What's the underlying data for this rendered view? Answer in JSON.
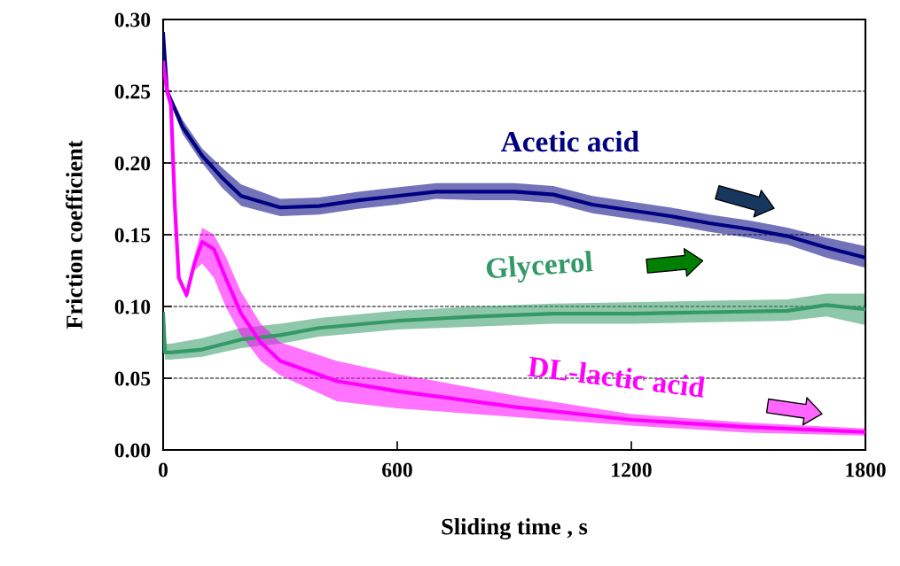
{
  "chart_data": {
    "type": "line",
    "xlabel": "Sliding time , s",
    "ylabel": "Friction coefficient",
    "xlim": [
      0,
      1800
    ],
    "ylim": [
      0,
      0.3
    ],
    "xticks": [
      0,
      600,
      1200,
      1800
    ],
    "yticks": [
      {
        "value": 0,
        "label": "0.00"
      },
      {
        "value": 0.05,
        "label": "0.05"
      },
      {
        "value": 0.1,
        "label": "0.10"
      },
      {
        "value": 0.15,
        "label": "0.15"
      },
      {
        "value": 0.2,
        "label": "0.20"
      },
      {
        "value": 0.25,
        "label": "0.25"
      },
      {
        "value": 0.3,
        "label": "0.30"
      }
    ],
    "grid": "y",
    "legend": false,
    "marker": "none",
    "line_style": "solid",
    "series": [
      {
        "name": "Acetic acid",
        "color": "#000080",
        "x": [
          0,
          10,
          50,
          100,
          150,
          200,
          300,
          400,
          500,
          600,
          700,
          800,
          900,
          1000,
          1100,
          1200,
          1300,
          1400,
          1500,
          1600,
          1700,
          1800
        ],
        "values": [
          0.29,
          0.25,
          0.225,
          0.205,
          0.19,
          0.177,
          0.169,
          0.17,
          0.174,
          0.177,
          0.18,
          0.18,
          0.18,
          0.178,
          0.171,
          0.167,
          0.163,
          0.158,
          0.154,
          0.149,
          0.141,
          0.134
        ],
        "lower": [
          0.29,
          0.248,
          0.22,
          0.2,
          0.183,
          0.17,
          0.163,
          0.164,
          0.168,
          0.171,
          0.175,
          0.174,
          0.174,
          0.172,
          0.165,
          0.161,
          0.157,
          0.152,
          0.148,
          0.143,
          0.134,
          0.127
        ],
        "upper": [
          0.29,
          0.252,
          0.23,
          0.21,
          0.197,
          0.185,
          0.175,
          0.176,
          0.18,
          0.183,
          0.186,
          0.186,
          0.186,
          0.184,
          0.177,
          0.173,
          0.169,
          0.164,
          0.16,
          0.155,
          0.148,
          0.142
        ]
      },
      {
        "name": "Glycerol",
        "color": "#339966",
        "x": [
          0,
          5,
          20,
          100,
          200,
          300,
          400,
          600,
          800,
          1000,
          1200,
          1400,
          1600,
          1700,
          1800
        ],
        "values": [
          0.095,
          0.068,
          0.068,
          0.07,
          0.077,
          0.08,
          0.085,
          0.09,
          0.093,
          0.095,
          0.095,
          0.096,
          0.097,
          0.101,
          0.098
        ],
        "lower": [
          0.09,
          0.063,
          0.063,
          0.065,
          0.071,
          0.074,
          0.079,
          0.084,
          0.086,
          0.088,
          0.088,
          0.089,
          0.09,
          0.093,
          0.087
        ],
        "upper": [
          0.1,
          0.074,
          0.074,
          0.078,
          0.085,
          0.088,
          0.092,
          0.097,
          0.1,
          0.102,
          0.103,
          0.104,
          0.105,
          0.109,
          0.109
        ]
      },
      {
        "name": "DL-lactic acid",
        "color": "#ff00ff",
        "x": [
          0,
          10,
          20,
          30,
          40,
          60,
          80,
          100,
          130,
          160,
          200,
          250,
          300,
          445,
          600,
          900,
          1200,
          1500,
          1800
        ],
        "values": [
          0.27,
          0.25,
          0.24,
          0.17,
          0.12,
          0.108,
          0.13,
          0.145,
          0.14,
          0.12,
          0.095,
          0.075,
          0.062,
          0.048,
          0.041,
          0.03,
          0.021,
          0.016,
          0.0125
        ],
        "lower": [
          0.27,
          0.25,
          0.24,
          0.17,
          0.12,
          0.105,
          0.125,
          0.13,
          0.12,
          0.1,
          0.08,
          0.062,
          0.052,
          0.034,
          0.029,
          0.023,
          0.017,
          0.012,
          0.01
        ],
        "upper": [
          0.27,
          0.25,
          0.24,
          0.17,
          0.12,
          0.111,
          0.135,
          0.155,
          0.15,
          0.135,
          0.11,
          0.088,
          0.075,
          0.062,
          0.053,
          0.038,
          0.025,
          0.019,
          0.015
        ]
      }
    ]
  }
}
